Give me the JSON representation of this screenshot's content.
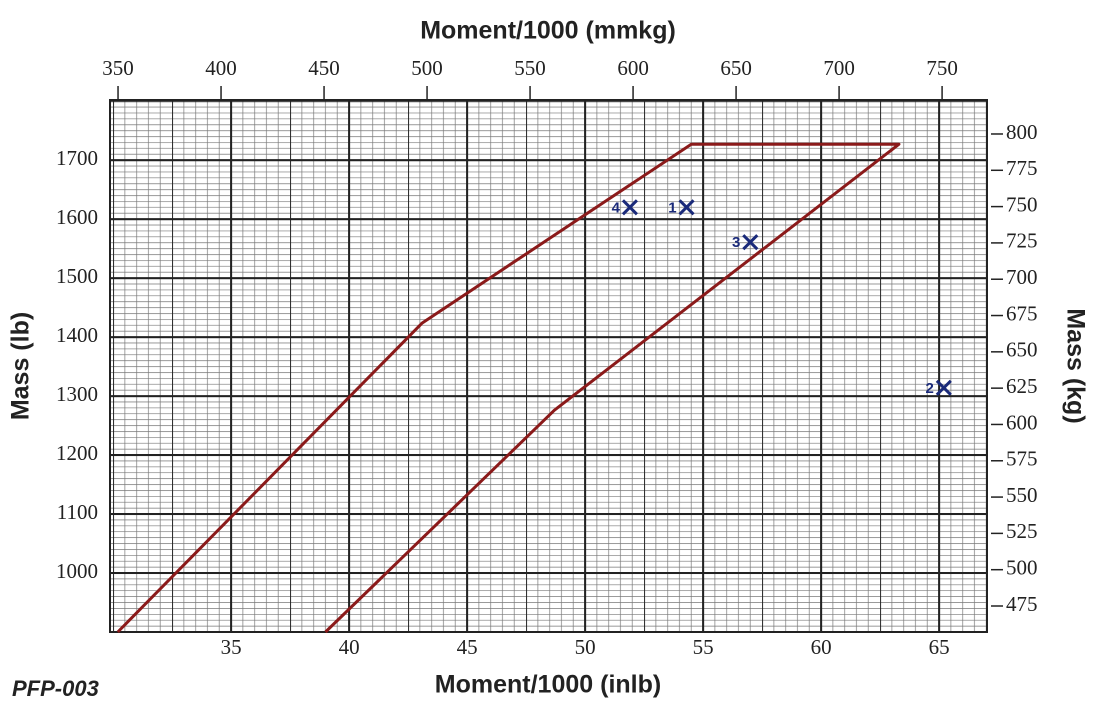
{
  "chart_data": {
    "type": "line",
    "title": "Moment/1000 (mmkg)",
    "xlabel": "Moment/1000 (inlb)",
    "ylabel": "Mass (lb)",
    "y2label": "Mass (kg)",
    "footnote": "PFP-003",
    "xlim": [
      29.87,
      67.03
    ],
    "xticks": [
      35,
      40,
      45,
      50,
      55,
      60,
      65
    ],
    "ylim": [
      900,
      1802
    ],
    "yticks": [
      1000,
      1100,
      1200,
      1300,
      1400,
      1500,
      1600,
      1700
    ],
    "x2lim": [
      346.1,
      771.8
    ],
    "x2ticks": [
      350,
      400,
      450,
      500,
      550,
      600,
      650,
      700,
      750
    ],
    "y2lim": [
      457.1,
      823.4
    ],
    "y2ticks": [
      475,
      500,
      525,
      550,
      575,
      600,
      625,
      650,
      675,
      700,
      725,
      750,
      775,
      800
    ],
    "grid": true,
    "series": [
      {
        "type": "line",
        "color": "#8b1a1a",
        "x": [
          30.2,
          43.1,
          54.5,
          63.3,
          48.7,
          39.0
        ],
        "values": [
          900,
          1424,
          1727,
          1727,
          1276,
          900
        ]
      },
      {
        "type": "scatter",
        "color": "#1a2a7a",
        "x": [
          54.3,
          65.2,
          57.0,
          51.9
        ],
        "values": [
          1620,
          1314,
          1561,
          1620
        ],
        "point_labels": [
          "1",
          "2",
          "3",
          "4"
        ]
      }
    ]
  }
}
